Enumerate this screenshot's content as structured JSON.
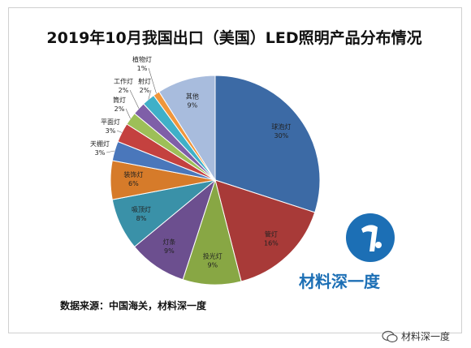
{
  "title": "2019年10月我国出口（美国）LED照明产品分布情况",
  "source": "数据来源：中国海关，材料深一度",
  "brand_name": "材料深一度",
  "watermark": "材料深一度",
  "chart_data": {
    "type": "pie",
    "title": "2019年10月我国出口（美国）LED照明产品分布情况",
    "slices": [
      {
        "name": "球泡灯",
        "value": 30,
        "label": "30%",
        "color": "#3c6aa5"
      },
      {
        "name": "管灯",
        "value": 16,
        "label": "16%",
        "color": "#a83a38"
      },
      {
        "name": "投光灯",
        "value": 9,
        "label": "9%",
        "color": "#88a744"
      },
      {
        "name": "灯条",
        "value": 9,
        "label": "9%",
        "color": "#6c4f8f"
      },
      {
        "name": "吸顶灯",
        "value": 8,
        "label": "8%",
        "color": "#3a91a8"
      },
      {
        "name": "装饰灯",
        "value": 6,
        "label": "6%",
        "color": "#d67b2a"
      },
      {
        "name": "天棚灯",
        "value": 3,
        "label": "3%",
        "color": "#4a77bb"
      },
      {
        "name": "平面灯",
        "value": 3,
        "label": "3%",
        "color": "#c4413f"
      },
      {
        "name": "筒灯",
        "value": 2,
        "label": "2%",
        "color": "#9dbf58"
      },
      {
        "name": "工作灯",
        "value": 2,
        "label": "2%",
        "color": "#7f5fa8"
      },
      {
        "name": "射灯",
        "value": 2,
        "label": "2%",
        "color": "#3fb0c8"
      },
      {
        "name": "植物灯",
        "value": 1,
        "label": "1%",
        "color": "#f0963b"
      },
      {
        "name": "其他",
        "value": 9,
        "label": "9%",
        "color": "#a8bcdd"
      }
    ]
  }
}
